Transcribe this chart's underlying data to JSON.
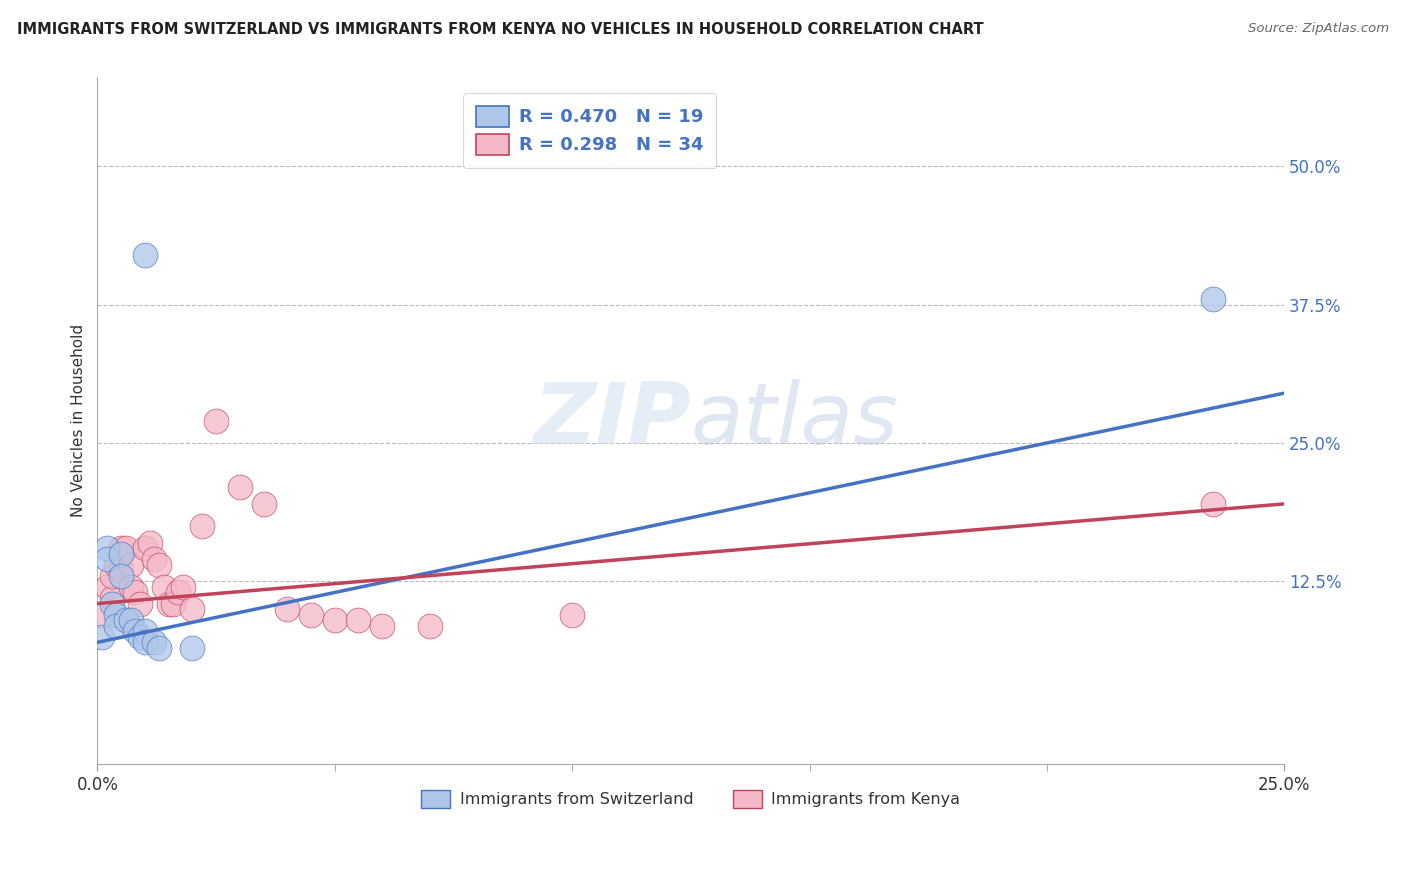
{
  "title": "IMMIGRANTS FROM SWITZERLAND VS IMMIGRANTS FROM KENYA NO VEHICLES IN HOUSEHOLD CORRELATION CHART",
  "source": "Source: ZipAtlas.com",
  "ylabel": "No Vehicles in Household",
  "legend_blue_r": "0.470",
  "legend_blue_n": "19",
  "legend_pink_r": "0.298",
  "legend_pink_n": "34",
  "legend_label_blue": "Immigrants from Switzerland",
  "legend_label_pink": "Immigrants from Kenya",
  "blue_color": "#aec6e8",
  "blue_line_color": "#4472c4",
  "pink_color": "#f4b8c8",
  "pink_line_color": "#c0435a",
  "background_color": "#ffffff",
  "grid_color": "#bbbbbb",
  "watermark_zip": "ZIP",
  "watermark_atlas": "atlas",
  "xlim": [
    0,
    0.25
  ],
  "ylim": [
    -0.04,
    0.58
  ],
  "y_ticks": [
    0.125,
    0.25,
    0.375,
    0.5
  ],
  "y_tick_labels": [
    "12.5%",
    "25.0%",
    "37.5%",
    "50.0%"
  ],
  "x_ticks_minor": [
    0.05,
    0.1,
    0.15,
    0.2
  ],
  "swiss_x": [
    0.001,
    0.002,
    0.002,
    0.003,
    0.004,
    0.004,
    0.005,
    0.005,
    0.006,
    0.007,
    0.008,
    0.009,
    0.01,
    0.01,
    0.012,
    0.013,
    0.02,
    0.235,
    0.01
  ],
  "swiss_y": [
    0.075,
    0.155,
    0.145,
    0.105,
    0.095,
    0.085,
    0.15,
    0.13,
    0.09,
    0.09,
    0.08,
    0.075,
    0.08,
    0.07,
    0.07,
    0.065,
    0.065,
    0.38,
    0.42
  ],
  "kenya_x": [
    0.001,
    0.002,
    0.003,
    0.003,
    0.004,
    0.005,
    0.005,
    0.006,
    0.007,
    0.007,
    0.008,
    0.009,
    0.01,
    0.011,
    0.012,
    0.013,
    0.014,
    0.015,
    0.016,
    0.017,
    0.018,
    0.02,
    0.022,
    0.025,
    0.03,
    0.035,
    0.04,
    0.045,
    0.05,
    0.055,
    0.06,
    0.07,
    0.1,
    0.235
  ],
  "kenya_y": [
    0.095,
    0.12,
    0.11,
    0.13,
    0.14,
    0.155,
    0.135,
    0.155,
    0.14,
    0.12,
    0.115,
    0.105,
    0.155,
    0.16,
    0.145,
    0.14,
    0.12,
    0.105,
    0.105,
    0.115,
    0.12,
    0.1,
    0.175,
    0.27,
    0.21,
    0.195,
    0.1,
    0.095,
    0.09,
    0.09,
    0.085,
    0.085,
    0.095,
    0.195
  ],
  "blue_line_x0": 0.0,
  "blue_line_y0": 0.07,
  "blue_line_x1": 0.25,
  "blue_line_y1": 0.295,
  "pink_line_x0": 0.0,
  "pink_line_y0": 0.105,
  "pink_line_x1": 0.25,
  "pink_line_y1": 0.195
}
